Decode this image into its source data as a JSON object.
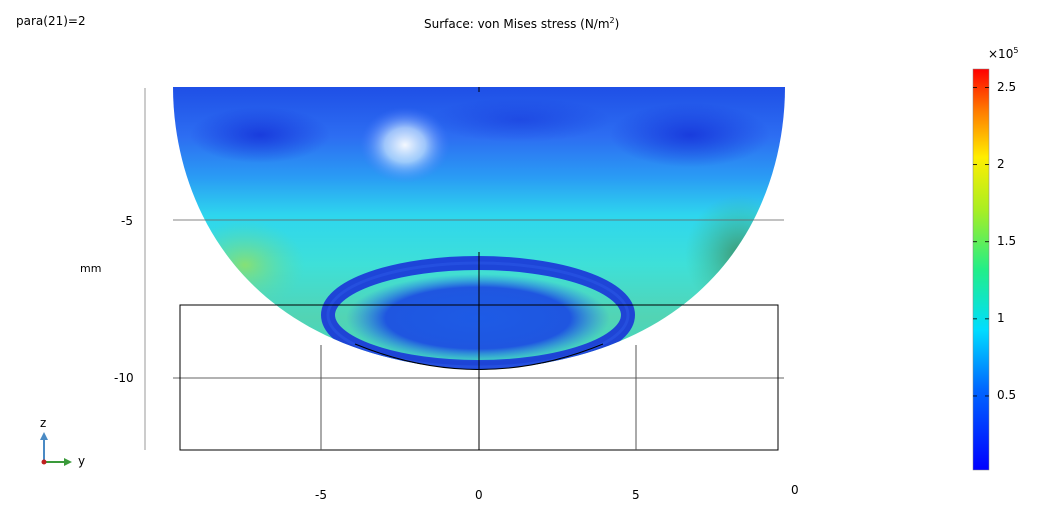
{
  "parameter_label": "para(21)=2",
  "title": {
    "prefix": "Surface: von Mises stress (N/m",
    "superscript": "2",
    "suffix": ")"
  },
  "axes": {
    "z_unit": "mm",
    "z_ticks": [
      "-5",
      "-10"
    ],
    "y_ticks": [
      "-5",
      "0",
      "5"
    ],
    "x_origin_label": "0"
  },
  "colorbar": {
    "multiplier_base": "×10",
    "multiplier_exp": "5",
    "ticks": [
      "2.5",
      "2",
      "1.5",
      "1",
      "0.5"
    ],
    "tick_values": [
      2.5,
      2.0,
      1.5,
      1.0,
      0.5
    ],
    "range": [
      0.02,
      2.62
    ],
    "colormap": "rainbow"
  },
  "triad": {
    "up_label": "z",
    "right_label": "y",
    "up_color": "#4a8ac4",
    "right_color": "#3a9a3a",
    "origin_color": "#c02020"
  }
}
